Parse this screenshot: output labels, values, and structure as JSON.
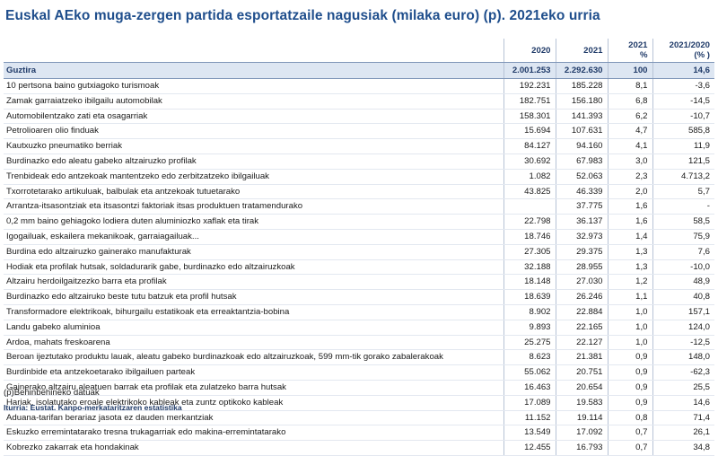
{
  "title": "Euskal AEko muga-zergen partida esportatzaile nagusiak (milaka euro) (p). 2021eko urria",
  "columns": [
    "2020",
    "2021",
    "2021 %",
    "2021/2020 (% )"
  ],
  "columns_lines": {
    "c1": [
      "2020"
    ],
    "c2": [
      "2021"
    ],
    "c3": [
      "2021",
      "%"
    ],
    "c4": [
      "2021/2020",
      "(% )"
    ]
  },
  "total": {
    "label": "Guztira",
    "v2020": "2.001.253",
    "v2021": "2.292.630",
    "pct": "100",
    "var": "14,6"
  },
  "rows": [
    {
      "label": "10 pertsona baino gutxiagoko turismoak",
      "v2020": "192.231",
      "v2021": "185.228",
      "pct": "8,1",
      "var": "-3,6"
    },
    {
      "label": "Zamak garraiatzeko ibilgailu automobilak",
      "v2020": "182.751",
      "v2021": "156.180",
      "pct": "6,8",
      "var": "-14,5"
    },
    {
      "label": "Automobilentzako zati eta osagarriak",
      "v2020": "158.301",
      "v2021": "141.393",
      "pct": "6,2",
      "var": "-10,7"
    },
    {
      "label": "Petrolioaren olio finduak",
      "v2020": "15.694",
      "v2021": "107.631",
      "pct": "4,7",
      "var": "585,8"
    },
    {
      "label": "Kautxuzko pneumatiko berriak",
      "v2020": "84.127",
      "v2021": "94.160",
      "pct": "4,1",
      "var": "11,9"
    },
    {
      "label": "Burdinazko edo aleatu gabeko altzairuzko profilak",
      "v2020": "30.692",
      "v2021": "67.983",
      "pct": "3,0",
      "var": "121,5"
    },
    {
      "label": "Trenbideak edo antzekoak mantentzeko edo zerbitzatzeko ibilgailuak",
      "v2020": "1.082",
      "v2021": "52.063",
      "pct": "2,3",
      "var": "4.713,2"
    },
    {
      "label": "Txorrotetarako artikuluak, balbulak eta antzekoak tutuetarako",
      "v2020": "43.825",
      "v2021": "46.339",
      "pct": "2,0",
      "var": "5,7"
    },
    {
      "label": "Arrantza-itsasontziak eta itsasontzi faktoriak itsas produktuen tratamendurako",
      "v2020": "",
      "v2021": "37.775",
      "pct": "1,6",
      "var": "-"
    },
    {
      "label": "0,2 mm baino gehiagoko lodiera duten aluminiozko xaflak eta tirak",
      "v2020": "22.798",
      "v2021": "36.137",
      "pct": "1,6",
      "var": "58,5"
    },
    {
      "label": "Igogailuak, eskailera mekanikoak, garraiagailuak...",
      "v2020": "18.746",
      "v2021": "32.973",
      "pct": "1,4",
      "var": "75,9"
    },
    {
      "label": "Burdina edo altzairuzko gainerako manufakturak",
      "v2020": "27.305",
      "v2021": "29.375",
      "pct": "1,3",
      "var": "7,6"
    },
    {
      "label": "Hodiak eta profilak hutsak, soldadurarik gabe, burdinazko edo altzairuzkoak",
      "v2020": "32.188",
      "v2021": "28.955",
      "pct": "1,3",
      "var": "-10,0"
    },
    {
      "label": "Altzairu herdoilgaitzezko barra eta profilak",
      "v2020": "18.148",
      "v2021": "27.030",
      "pct": "1,2",
      "var": "48,9"
    },
    {
      "label": "Burdinazko edo altzairuko beste tutu batzuk eta profil hutsak",
      "v2020": "18.639",
      "v2021": "26.246",
      "pct": "1,1",
      "var": "40,8"
    },
    {
      "label": "Transformadore elektrikoak, bihurgailu estatikoak eta erreaktantzia-bobina",
      "v2020": "8.902",
      "v2021": "22.884",
      "pct": "1,0",
      "var": "157,1"
    },
    {
      "label": "Landu gabeko aluminioa",
      "v2020": "9.893",
      "v2021": "22.165",
      "pct": "1,0",
      "var": "124,0"
    },
    {
      "label": "Ardoa, mahats freskoarena",
      "v2020": "25.275",
      "v2021": "22.127",
      "pct": "1,0",
      "var": "-12,5"
    },
    {
      "label": "Beroan ijeztutako produktu lauak, aleatu gabeko burdinazkoak edo altzairuzkoak, 599 mm-tik gorako zabalerakoak",
      "v2020": "8.623",
      "v2021": "21.381",
      "pct": "0,9",
      "var": "148,0"
    },
    {
      "label": "Burdinbide eta antzekoetarako ibilgailuen parteak",
      "v2020": "55.062",
      "v2021": "20.751",
      "pct": "0,9",
      "var": "-62,3"
    },
    {
      "label": "Gainerako altzairu aleatuen barrak eta profilak eta zulatzeko barra hutsak",
      "v2020": "16.463",
      "v2021": "20.654",
      "pct": "0,9",
      "var": "25,5"
    },
    {
      "label": "Hariak, isolatutako eroale elektrikoko kableak eta zuntz optikoko kableak",
      "v2020": "17.089",
      "v2021": "19.583",
      "pct": "0,9",
      "var": "14,6"
    },
    {
      "label": "Aduana-tarifan berariaz jasota ez dauden merkantziak",
      "v2020": "11.152",
      "v2021": "19.114",
      "pct": "0,8",
      "var": "71,4"
    },
    {
      "label": "Eskuzko erremintatarako tresna trukagarriak edo  makina-erremintatarako",
      "v2020": "13.549",
      "v2021": "17.092",
      "pct": "0,7",
      "var": "26,1"
    },
    {
      "label": "Kobrezko zakarrak eta hondakinak",
      "v2020": "12.455",
      "v2021": "16.793",
      "pct": "0,7",
      "var": "34,8"
    }
  ],
  "footnote": "(p)Behinbehineko datuak",
  "source": "Iturria: Eustat. Kanpo-merkataritzaren estatistika"
}
